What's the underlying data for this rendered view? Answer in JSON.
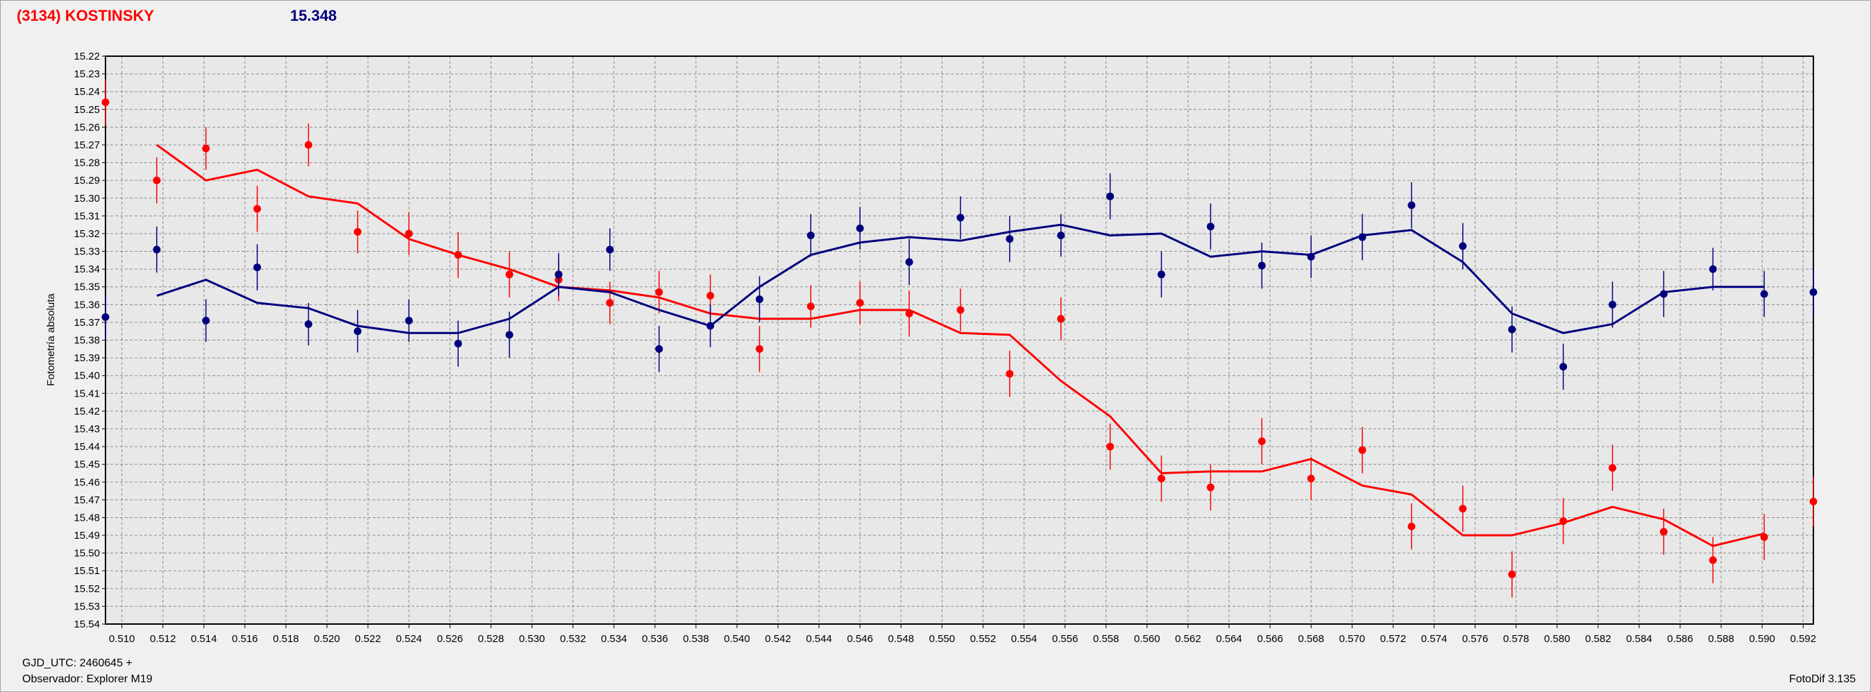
{
  "header": {
    "object": "(3134) KOSTINSKY",
    "magnitude": "15.348"
  },
  "footer": {
    "gjd": "GJD_UTC: 2460645 +",
    "observer": "Observador: Explorer M19",
    "version": "FotoDif 3.135"
  },
  "colors": {
    "series1": "#ff0000",
    "series2": "#00007f",
    "grid": "#8c8c8c",
    "plot_bg": "#e8e8e8"
  },
  "chart_data": {
    "type": "scatter",
    "title": "(3134) KOSTINSKY",
    "xlabel": "",
    "ylabel": "Fotometría absoluta",
    "xlim": [
      0.5092,
      0.5925
    ],
    "ylim": [
      15.22,
      15.54
    ],
    "y_inverted": true,
    "grid": true,
    "x_ticks": [
      "0.510",
      "0.512",
      "0.514",
      "0.516",
      "0.518",
      "0.520",
      "0.522",
      "0.524",
      "0.526",
      "0.528",
      "0.530",
      "0.532",
      "0.534",
      "0.536",
      "0.538",
      "0.540",
      "0.542",
      "0.544",
      "0.546",
      "0.548",
      "0.550",
      "0.552",
      "0.554",
      "0.556",
      "0.558",
      "0.560",
      "0.562",
      "0.564",
      "0.566",
      "0.568",
      "0.570",
      "0.572",
      "0.574",
      "0.576",
      "0.578",
      "0.580",
      "0.582",
      "0.584",
      "0.586",
      "0.588",
      "0.590",
      "0.592"
    ],
    "y_ticks": [
      "15.22",
      "15.23",
      "15.24",
      "15.25",
      "15.26",
      "15.27",
      "15.28",
      "15.29",
      "15.30",
      "15.31",
      "15.32",
      "15.33",
      "15.34",
      "15.35",
      "15.36",
      "15.37",
      "15.38",
      "15.39",
      "15.40",
      "15.41",
      "15.42",
      "15.43",
      "15.44",
      "15.45",
      "15.46",
      "15.47",
      "15.48",
      "15.49",
      "15.50",
      "15.51",
      "15.52",
      "15.53",
      "15.54"
    ],
    "series": [
      {
        "color": "#ff0000",
        "x": [
          0.5092,
          0.5117,
          0.5141,
          0.5166,
          0.5191,
          0.5215,
          0.524,
          0.5264,
          0.5289,
          0.5313,
          0.5338,
          0.5362,
          0.5387,
          0.5411,
          0.5436,
          0.546,
          0.5484,
          0.5509,
          0.5533,
          0.5558,
          0.5582,
          0.5607,
          0.5631,
          0.5656,
          0.568,
          0.5705,
          0.5729,
          0.5754,
          0.5778,
          0.5803,
          0.5827,
          0.5852,
          0.5876,
          0.5901,
          0.5925
        ],
        "y": [
          15.246,
          15.29,
          15.272,
          15.306,
          15.27,
          15.319,
          15.32,
          15.332,
          15.343,
          15.346,
          15.359,
          15.353,
          15.355,
          15.385,
          15.361,
          15.359,
          15.365,
          15.363,
          15.399,
          15.368,
          15.44,
          15.458,
          15.463,
          15.437,
          15.458,
          15.442,
          15.485,
          15.475,
          15.512,
          15.482,
          15.452,
          15.488,
          15.504,
          15.491,
          15.471
        ],
        "err": [
          0.013,
          0.013,
          0.012,
          0.013,
          0.012,
          0.012,
          0.012,
          0.013,
          0.013,
          0.012,
          0.012,
          0.012,
          0.012,
          0.013,
          0.012,
          0.012,
          0.013,
          0.012,
          0.013,
          0.012,
          0.013,
          0.013,
          0.013,
          0.013,
          0.012,
          0.013,
          0.013,
          0.013,
          0.013,
          0.013,
          0.013,
          0.013,
          0.013,
          0.013,
          0.014
        ],
        "fit_x": [
          0.5117,
          0.5141,
          0.5166,
          0.5191,
          0.5215,
          0.524,
          0.5264,
          0.5289,
          0.5313,
          0.5338,
          0.5362,
          0.5387,
          0.5411,
          0.5436,
          0.546,
          0.5484,
          0.5509,
          0.5533,
          0.5558,
          0.5582,
          0.5607,
          0.5631,
          0.5656,
          0.568,
          0.5705,
          0.5729,
          0.5754,
          0.5778,
          0.5803,
          0.5827,
          0.5852,
          0.5876,
          0.5901
        ],
        "fit_y": [
          15.27,
          15.29,
          15.284,
          15.299,
          15.303,
          15.323,
          15.332,
          15.34,
          15.35,
          15.352,
          15.356,
          15.365,
          15.368,
          15.368,
          15.363,
          15.363,
          15.376,
          15.377,
          15.403,
          15.423,
          15.455,
          15.454,
          15.454,
          15.447,
          15.462,
          15.467,
          15.49,
          15.49,
          15.483,
          15.474,
          15.481,
          15.496,
          15.489
        ]
      },
      {
        "color": "#00007f",
        "x": [
          0.5092,
          0.5117,
          0.5141,
          0.5166,
          0.5191,
          0.5215,
          0.524,
          0.5264,
          0.5289,
          0.5313,
          0.5338,
          0.5362,
          0.5387,
          0.5411,
          0.5436,
          0.546,
          0.5484,
          0.5509,
          0.5533,
          0.5558,
          0.5582,
          0.5607,
          0.5631,
          0.5656,
          0.568,
          0.5705,
          0.5729,
          0.5754,
          0.5778,
          0.5803,
          0.5827,
          0.5852,
          0.5876,
          0.5901,
          0.5925
        ],
        "y": [
          15.367,
          15.329,
          15.369,
          15.339,
          15.371,
          15.375,
          15.369,
          15.382,
          15.377,
          15.343,
          15.329,
          15.385,
          15.372,
          15.357,
          15.321,
          15.317,
          15.336,
          15.311,
          15.323,
          15.321,
          15.299,
          15.343,
          15.316,
          15.338,
          15.333,
          15.322,
          15.304,
          15.327,
          15.374,
          15.395,
          15.36,
          15.354,
          15.34,
          15.354,
          15.353
        ],
        "err": [
          0.013,
          0.013,
          0.012,
          0.013,
          0.012,
          0.012,
          0.012,
          0.013,
          0.013,
          0.012,
          0.012,
          0.013,
          0.012,
          0.013,
          0.012,
          0.012,
          0.013,
          0.012,
          0.013,
          0.012,
          0.013,
          0.013,
          0.013,
          0.013,
          0.012,
          0.013,
          0.013,
          0.013,
          0.013,
          0.013,
          0.013,
          0.013,
          0.012,
          0.013,
          0.014
        ],
        "fit_x": [
          0.5117,
          0.5141,
          0.5166,
          0.5191,
          0.5215,
          0.524,
          0.5264,
          0.5289,
          0.5313,
          0.5338,
          0.5362,
          0.5387,
          0.5411,
          0.5436,
          0.546,
          0.5484,
          0.5509,
          0.5533,
          0.5558,
          0.5582,
          0.5607,
          0.5631,
          0.5656,
          0.568,
          0.5705,
          0.5729,
          0.5754,
          0.5778,
          0.5803,
          0.5827,
          0.5852,
          0.5876,
          0.5901
        ],
        "fit_y": [
          15.355,
          15.346,
          15.359,
          15.362,
          15.372,
          15.376,
          15.376,
          15.368,
          15.35,
          15.353,
          15.363,
          15.372,
          15.35,
          15.332,
          15.325,
          15.322,
          15.324,
          15.319,
          15.315,
          15.321,
          15.32,
          15.333,
          15.33,
          15.332,
          15.321,
          15.318,
          15.336,
          15.365,
          15.376,
          15.371,
          15.353,
          15.35,
          15.35
        ]
      }
    ]
  }
}
